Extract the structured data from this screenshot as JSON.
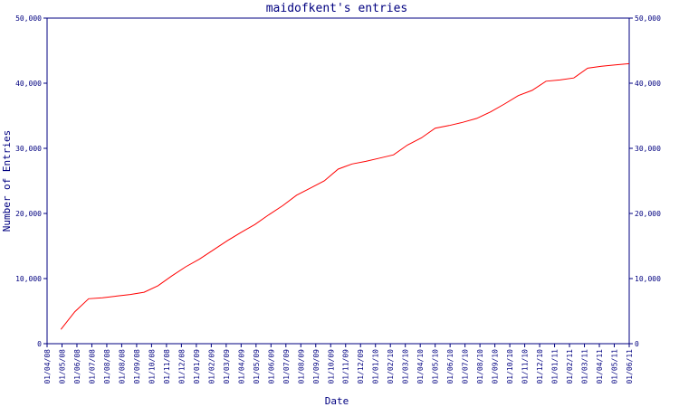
{
  "chart_data": {
    "type": "line",
    "title": "maidofkent's entries",
    "xlabel": "Date",
    "ylabel": "Number of Entries",
    "ylim": [
      0,
      50000
    ],
    "y_ticks": [
      0,
      10000,
      20000,
      30000,
      40000,
      50000
    ],
    "y_tick_labels": [
      "0",
      "10,000",
      "20,000",
      "30,000",
      "40,000",
      "50,000"
    ],
    "x_tick_labels": [
      "01/04/08",
      "01/05/08",
      "01/06/08",
      "01/07/08",
      "01/08/08",
      "01/08/08",
      "01/09/08",
      "01/10/08",
      "01/11/08",
      "01/12/08",
      "01/01/09",
      "01/02/09",
      "01/03/09",
      "01/04/09",
      "01/05/09",
      "01/06/09",
      "01/07/09",
      "01/08/09",
      "01/09/09",
      "01/10/09",
      "01/11/09",
      "01/12/09",
      "01/01/10",
      "01/02/10",
      "01/03/10",
      "01/04/10",
      "01/05/10",
      "01/06/10",
      "01/07/10",
      "01/08/10",
      "01/09/10",
      "01/10/10",
      "01/11/10",
      "01/12/10",
      "01/01/11",
      "01/02/11",
      "01/03/11",
      "01/04/11",
      "01/05/11",
      "01/06/11"
    ],
    "grid": false,
    "line_color": "#ff0000",
    "axis_color": "#000080",
    "series": [
      {
        "values": [
          null,
          2200,
          4900,
          6900,
          7050,
          7300,
          7550,
          7900,
          8900,
          10400,
          11800,
          13000,
          14400,
          15800,
          17100,
          18300,
          19800,
          21200,
          22800,
          23900,
          25000,
          26800,
          27600,
          28000,
          28500,
          29000,
          30500,
          31600,
          33100,
          33500,
          34000,
          34600,
          35600,
          36800,
          38100,
          38900,
          40300,
          40500,
          40800,
          42300,
          42600,
          42800,
          43000
        ]
      }
    ]
  }
}
